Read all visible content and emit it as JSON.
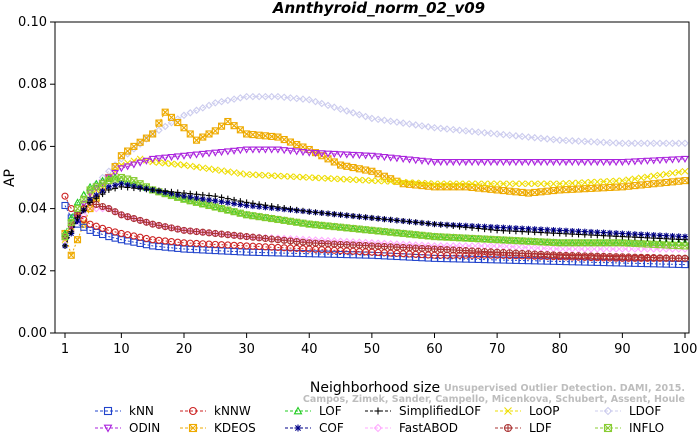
{
  "chart_data": {
    "type": "line",
    "title": "Annthyroid_norm_02_v09",
    "xlabel": "Neighborhood size",
    "ylabel": "AP",
    "xlim": [
      1,
      100
    ],
    "ylim": [
      0.0,
      0.1
    ],
    "xticks": [
      "1",
      "10",
      "20",
      "30",
      "40",
      "50",
      "60",
      "70",
      "80",
      "90",
      "100"
    ],
    "yticks": [
      "0.00",
      "0.02",
      "0.04",
      "0.06",
      "0.08",
      "0.10"
    ],
    "legend_position": "bottom",
    "credit_lines": [
      "Unsupervised Outlier Detection. DAMI, 2015.",
      "Campos, Zimek, Sander, Campello, Micenkova, Schubert, Assent, Houle"
    ],
    "series": [
      {
        "name": "kNN",
        "color": "#2244cc",
        "marker": "square",
        "points": [
          [
            1,
            0.041
          ],
          [
            2,
            0.037
          ],
          [
            3,
            0.035
          ],
          [
            5,
            0.033
          ],
          [
            8,
            0.031
          ],
          [
            10,
            0.03
          ],
          [
            15,
            0.028
          ],
          [
            20,
            0.027
          ],
          [
            30,
            0.026
          ],
          [
            40,
            0.0255
          ],
          [
            50,
            0.025
          ],
          [
            60,
            0.024
          ],
          [
            70,
            0.0235
          ],
          [
            80,
            0.023
          ],
          [
            90,
            0.0225
          ],
          [
            100,
            0.022
          ]
        ]
      },
      {
        "name": "kNNW",
        "color": "#cc2222",
        "marker": "circle",
        "points": [
          [
            1,
            0.044
          ],
          [
            2,
            0.04
          ],
          [
            3,
            0.038
          ],
          [
            5,
            0.035
          ],
          [
            8,
            0.033
          ],
          [
            10,
            0.032
          ],
          [
            15,
            0.03
          ],
          [
            20,
            0.029
          ],
          [
            30,
            0.028
          ],
          [
            40,
            0.027
          ],
          [
            50,
            0.026
          ],
          [
            60,
            0.025
          ],
          [
            70,
            0.025
          ],
          [
            80,
            0.0245
          ],
          [
            90,
            0.024
          ],
          [
            100,
            0.024
          ]
        ]
      },
      {
        "name": "LOF",
        "color": "#22cc22",
        "marker": "triangle",
        "points": [
          [
            1,
            0.032
          ],
          [
            3,
            0.042
          ],
          [
            5,
            0.047
          ],
          [
            7,
            0.049
          ],
          [
            9,
            0.05
          ],
          [
            12,
            0.048
          ],
          [
            15,
            0.046
          ],
          [
            20,
            0.043
          ],
          [
            30,
            0.038
          ],
          [
            40,
            0.035
          ],
          [
            50,
            0.033
          ],
          [
            60,
            0.031
          ],
          [
            70,
            0.03
          ],
          [
            80,
            0.029
          ],
          [
            90,
            0.029
          ],
          [
            100,
            0.029
          ]
        ]
      },
      {
        "name": "SimplifiedLOF",
        "color": "#000000",
        "marker": "plus",
        "points": [
          [
            1,
            0.028
          ],
          [
            3,
            0.037
          ],
          [
            5,
            0.042
          ],
          [
            8,
            0.046
          ],
          [
            10,
            0.047
          ],
          [
            15,
            0.046
          ],
          [
            20,
            0.045
          ],
          [
            25,
            0.044
          ],
          [
            30,
            0.042
          ],
          [
            40,
            0.039
          ],
          [
            50,
            0.037
          ],
          [
            60,
            0.035
          ],
          [
            70,
            0.033
          ],
          [
            80,
            0.032
          ],
          [
            90,
            0.031
          ],
          [
            100,
            0.03
          ]
        ]
      },
      {
        "name": "LoOP",
        "color": "#eedd00",
        "marker": "x",
        "points": [
          [
            1,
            0.03
          ],
          [
            3,
            0.038
          ],
          [
            5,
            0.044
          ],
          [
            8,
            0.05
          ],
          [
            10,
            0.054
          ],
          [
            13,
            0.056
          ],
          [
            15,
            0.055
          ],
          [
            20,
            0.054
          ],
          [
            30,
            0.051
          ],
          [
            40,
            0.05
          ],
          [
            50,
            0.049
          ],
          [
            60,
            0.048
          ],
          [
            70,
            0.048
          ],
          [
            80,
            0.048
          ],
          [
            90,
            0.049
          ],
          [
            100,
            0.052
          ]
        ]
      },
      {
        "name": "LDOF",
        "color": "#ccccee",
        "marker": "diamond",
        "points": [
          [
            1,
            0.03
          ],
          [
            5,
            0.046
          ],
          [
            8,
            0.052
          ],
          [
            10,
            0.056
          ],
          [
            15,
            0.064
          ],
          [
            20,
            0.07
          ],
          [
            25,
            0.074
          ],
          [
            30,
            0.076
          ],
          [
            35,
            0.076
          ],
          [
            40,
            0.075
          ],
          [
            45,
            0.072
          ],
          [
            50,
            0.069
          ],
          [
            60,
            0.066
          ],
          [
            70,
            0.064
          ],
          [
            80,
            0.062
          ],
          [
            90,
            0.061
          ],
          [
            100,
            0.061
          ]
        ]
      },
      {
        "name": "ODIN",
        "color": "#aa22dd",
        "marker": "triangle-down",
        "points": [
          [
            1,
            0.031
          ],
          [
            3,
            0.038
          ],
          [
            5,
            0.045
          ],
          [
            8,
            0.05
          ],
          [
            10,
            0.053
          ],
          [
            15,
            0.056
          ],
          [
            20,
            0.057
          ],
          [
            25,
            0.058
          ],
          [
            30,
            0.059
          ],
          [
            35,
            0.059
          ],
          [
            40,
            0.058
          ],
          [
            50,
            0.057
          ],
          [
            60,
            0.055
          ],
          [
            70,
            0.055
          ],
          [
            80,
            0.055
          ],
          [
            90,
            0.055
          ],
          [
            100,
            0.056
          ]
        ]
      },
      {
        "name": "KDEOS",
        "color": "#eeaa00",
        "marker": "box-x",
        "points": [
          [
            1,
            0.032
          ],
          [
            2,
            0.025
          ],
          [
            3,
            0.03
          ],
          [
            5,
            0.04
          ],
          [
            8,
            0.05
          ],
          [
            10,
            0.057
          ],
          [
            12,
            0.06
          ],
          [
            15,
            0.064
          ],
          [
            17,
            0.071
          ],
          [
            20,
            0.066
          ],
          [
            22,
            0.062
          ],
          [
            25,
            0.065
          ],
          [
            27,
            0.068
          ],
          [
            30,
            0.064
          ],
          [
            35,
            0.063
          ],
          [
            40,
            0.059
          ],
          [
            45,
            0.054
          ],
          [
            50,
            0.052
          ],
          [
            55,
            0.048
          ],
          [
            60,
            0.047
          ],
          [
            65,
            0.047
          ],
          [
            70,
            0.046
          ],
          [
            75,
            0.045
          ],
          [
            80,
            0.046
          ],
          [
            90,
            0.047
          ],
          [
            100,
            0.049
          ]
        ]
      },
      {
        "name": "COF",
        "color": "#000088",
        "marker": "star",
        "points": [
          [
            1,
            0.028
          ],
          [
            3,
            0.036
          ],
          [
            5,
            0.043
          ],
          [
            8,
            0.047
          ],
          [
            10,
            0.048
          ],
          [
            15,
            0.046
          ],
          [
            20,
            0.044
          ],
          [
            30,
            0.041
          ],
          [
            40,
            0.039
          ],
          [
            50,
            0.037
          ],
          [
            60,
            0.035
          ],
          [
            70,
            0.034
          ],
          [
            80,
            0.033
          ],
          [
            90,
            0.032
          ],
          [
            100,
            0.031
          ]
        ]
      },
      {
        "name": "FastABOD",
        "color": "#ffaaff",
        "marker": "diamond",
        "points": [
          [
            1,
            0.03
          ],
          [
            3,
            0.036
          ],
          [
            5,
            0.04
          ],
          [
            8,
            0.04
          ],
          [
            10,
            0.038
          ],
          [
            15,
            0.035
          ],
          [
            20,
            0.033
          ],
          [
            30,
            0.031
          ],
          [
            40,
            0.03
          ],
          [
            50,
            0.029
          ],
          [
            60,
            0.028
          ],
          [
            70,
            0.028
          ],
          [
            80,
            0.027
          ],
          [
            90,
            0.027
          ],
          [
            100,
            0.027
          ]
        ]
      },
      {
        "name": "LDF",
        "color": "#aa3333",
        "marker": "circle-plus",
        "points": [
          [
            1,
            0.031
          ],
          [
            3,
            0.038
          ],
          [
            5,
            0.042
          ],
          [
            8,
            0.04
          ],
          [
            10,
            0.038
          ],
          [
            15,
            0.035
          ],
          [
            20,
            0.033
          ],
          [
            30,
            0.031
          ],
          [
            40,
            0.029
          ],
          [
            50,
            0.028
          ],
          [
            60,
            0.027
          ],
          [
            70,
            0.026
          ],
          [
            80,
            0.025
          ],
          [
            90,
            0.0245
          ],
          [
            100,
            0.024
          ]
        ]
      },
      {
        "name": "INFLO",
        "color": "#88cc33",
        "marker": "box-x",
        "points": [
          [
            1,
            0.031
          ],
          [
            3,
            0.04
          ],
          [
            5,
            0.046
          ],
          [
            8,
            0.049
          ],
          [
            10,
            0.05
          ],
          [
            12,
            0.049
          ],
          [
            15,
            0.046
          ],
          [
            20,
            0.043
          ],
          [
            30,
            0.038
          ],
          [
            40,
            0.035
          ],
          [
            50,
            0.033
          ],
          [
            60,
            0.031
          ],
          [
            70,
            0.03
          ],
          [
            80,
            0.029
          ],
          [
            90,
            0.029
          ],
          [
            100,
            0.028
          ]
        ]
      }
    ]
  }
}
